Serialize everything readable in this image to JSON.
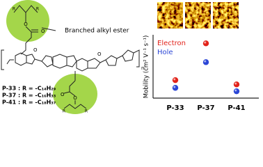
{
  "structure": {
    "ester_label": "Branched alkyl ester",
    "r_group": "R",
    "o_atom": "O",
    "n_label": "n",
    "polymers": [
      "P-33 : R = -C₁₄H₂₉",
      "P-37 : R = -C₁₆H₃₃",
      "P-41 : R = -C₁₈H₃₇"
    ]
  },
  "chart_data": {
    "type": "scatter",
    "y_label": "Mobility (cm² V⁻¹ s⁻¹)",
    "categories": [
      "P-33",
      "P-37",
      "P-41"
    ],
    "series": [
      {
        "name": "Electron",
        "color": "#e2231a",
        "values": [
          0.105,
          0.32,
          0.08
        ]
      },
      {
        "name": "Hole",
        "color": "#2b46d6",
        "values": [
          0.06,
          0.21,
          0.04
        ]
      }
    ],
    "ylim": [
      0,
      0.37
    ],
    "legend": "upper-left"
  }
}
